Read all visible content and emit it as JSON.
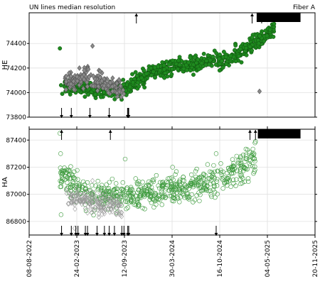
{
  "header": {
    "title": "UN lines median resolution",
    "right_label": "Fiber A"
  },
  "chart_data": [
    {
      "type": "scatter",
      "ylabel": "HE",
      "ylim": [
        73800,
        74650
      ],
      "yticks": [
        73800,
        74000,
        74200,
        74400
      ],
      "xlim": [
        "2022-08-08",
        "2025-11-20"
      ],
      "grid": true,
      "series": [
        {
          "marker": "filled-circle",
          "color": "#1f8a1f",
          "trend": [
            [
              "2023-01-01",
              74050
            ],
            [
              "2023-09-01",
              74010
            ],
            [
              "2024-01-01",
              74170
            ],
            [
              "2024-06-01",
              74230
            ],
            [
              "2024-11-01",
              74260
            ],
            [
              "2025-02-01",
              74350
            ],
            [
              "2025-06-01",
              74520
            ]
          ],
          "points": [
            [
              "2022-12-15",
              74360
            ],
            [
              "2022-12-20",
              74060
            ],
            [
              "2022-12-25",
              73990
            ],
            [
              "2023-02-01",
              74120
            ],
            [
              "2023-06-01",
              74080
            ],
            [
              "2023-09-01",
              74040
            ],
            [
              "2023-10-15",
              74150
            ],
            [
              "2024-01-01",
              74200
            ],
            [
              "2024-04-01",
              74260
            ],
            [
              "2024-08-01",
              74240
            ],
            [
              "2024-12-01",
              74300
            ],
            [
              "2025-03-01",
              74450
            ],
            [
              "2025-06-01",
              74560
            ],
            [
              "2025-07-15",
              74600
            ]
          ]
        },
        {
          "marker": "filled-diamond",
          "color": "#8a8a8a",
          "trend": [
            [
              "2023-01-05",
              74080
            ],
            [
              "2023-04-01",
              74130
            ],
            [
              "2023-07-15",
              74060
            ],
            [
              "2023-09-10",
              74000
            ]
          ],
          "points": [
            [
              "2023-05-01",
              74380
            ],
            [
              "2025-04-01",
              74010
            ]
          ]
        }
      ],
      "markers": {
        "bottom": [
          "2022-12-22",
          "2023-02-01",
          "2023-04-20",
          "2023-07-10",
          "2023-09-25",
          "2023-09-28",
          "2023-09-30"
        ],
        "top": [
          "2023-11-01",
          "2025-03-01",
          "2025-04-10"
        ],
        "top_band": [
          "2025-03-20",
          "2025-09-20"
        ]
      }
    },
    {
      "type": "scatter",
      "ylabel": "HA",
      "ylim": [
        86700,
        87480
      ],
      "yticks": [
        86800,
        87000,
        87200,
        87400
      ],
      "xlim": [
        "2022-08-08",
        "2025-11-20"
      ],
      "xticks": [
        "08-08-2022",
        "24-02-2023",
        "12-09-2023",
        "30-03-2024",
        "16-10-2024",
        "04-05-2025",
        "20-11-2025"
      ],
      "grid": true,
      "series": [
        {
          "marker": "open-circle",
          "color": "#3c9a3c",
          "trend": [
            [
              "2022-12-15",
              87150
            ],
            [
              "2023-04-01",
              87000
            ],
            [
              "2023-09-01",
              86980
            ],
            [
              "2024-01-01",
              87010
            ],
            [
              "2024-06-01",
              87050
            ],
            [
              "2024-11-01",
              87120
            ],
            [
              "2025-03-15",
              87260
            ]
          ],
          "points": [
            [
              "2022-12-15",
              87450
            ],
            [
              "2022-12-18",
              87300
            ],
            [
              "2022-12-20",
              86850
            ],
            [
              "2023-09-15",
              87260
            ],
            [
              "2024-04-01",
              87200
            ],
            [
              "2024-10-01",
              87300
            ],
            [
              "2025-03-15",
              87390
            ]
          ]
        },
        {
          "marker": "open-diamond",
          "color": "#9a9a9a",
          "trend": [
            [
              "2023-01-10",
              86980
            ],
            [
              "2023-04-01",
              86950
            ],
            [
              "2023-07-01",
              86920
            ],
            [
              "2023-09-01",
              86900
            ]
          ],
          "points": [
            [
              "2023-02-15",
              86750
            ],
            [
              "2023-05-01",
              87100
            ]
          ]
        }
      ],
      "markers": {
        "bottom": [
          "2022-12-22",
          "2023-02-01",
          "2023-02-20",
          "2023-03-01",
          "2023-04-01",
          "2023-04-10",
          "2023-05-20",
          "2023-06-20",
          "2023-07-10",
          "2023-08-01",
          "2023-09-01",
          "2023-09-10",
          "2023-09-26",
          "2023-09-30",
          "2024-10-01"
        ],
        "top": [
          "2022-12-22",
          "2023-07-15",
          "2025-02-20",
          "2025-03-15"
        ],
        "top_band": [
          "2025-03-25",
          "2025-09-20"
        ]
      }
    }
  ]
}
